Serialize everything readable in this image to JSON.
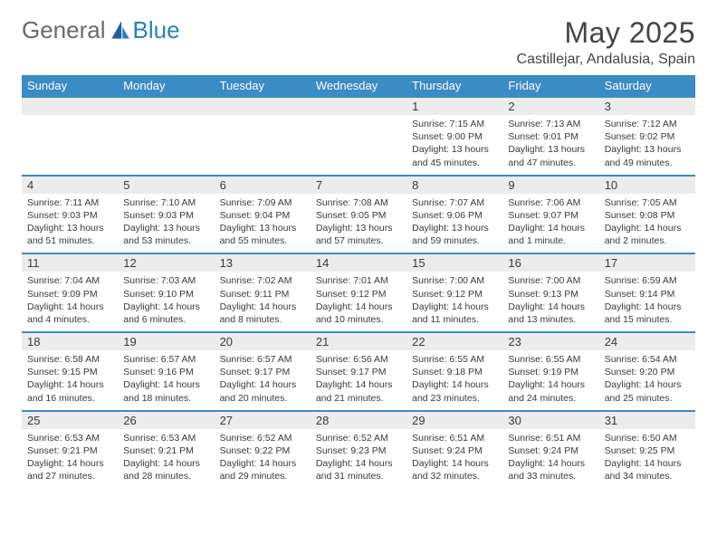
{
  "brand": {
    "general": "General",
    "blue": "Blue"
  },
  "title": "May 2025",
  "location": "Castillejar, Andalusia, Spain",
  "day_headers": [
    "Sunday",
    "Monday",
    "Tuesday",
    "Wednesday",
    "Thursday",
    "Friday",
    "Saturday"
  ],
  "colors": {
    "header_bg": "#3b8bc4",
    "header_text": "#ffffff",
    "daynum_bg": "#ececec",
    "row_divider": "#3b8bc4",
    "text": "#3a3a3a",
    "page_bg": "#ffffff"
  },
  "weeks": [
    {
      "nums": [
        "",
        "",
        "",
        "",
        "1",
        "2",
        "3"
      ],
      "cells": [
        null,
        null,
        null,
        null,
        {
          "sr": "Sunrise: 7:15 AM",
          "ss": "Sunset: 9:00 PM",
          "dl": "Daylight: 13 hours and 45 minutes."
        },
        {
          "sr": "Sunrise: 7:13 AM",
          "ss": "Sunset: 9:01 PM",
          "dl": "Daylight: 13 hours and 47 minutes."
        },
        {
          "sr": "Sunrise: 7:12 AM",
          "ss": "Sunset: 9:02 PM",
          "dl": "Daylight: 13 hours and 49 minutes."
        }
      ]
    },
    {
      "nums": [
        "4",
        "5",
        "6",
        "7",
        "8",
        "9",
        "10"
      ],
      "cells": [
        {
          "sr": "Sunrise: 7:11 AM",
          "ss": "Sunset: 9:03 PM",
          "dl": "Daylight: 13 hours and 51 minutes."
        },
        {
          "sr": "Sunrise: 7:10 AM",
          "ss": "Sunset: 9:03 PM",
          "dl": "Daylight: 13 hours and 53 minutes."
        },
        {
          "sr": "Sunrise: 7:09 AM",
          "ss": "Sunset: 9:04 PM",
          "dl": "Daylight: 13 hours and 55 minutes."
        },
        {
          "sr": "Sunrise: 7:08 AM",
          "ss": "Sunset: 9:05 PM",
          "dl": "Daylight: 13 hours and 57 minutes."
        },
        {
          "sr": "Sunrise: 7:07 AM",
          "ss": "Sunset: 9:06 PM",
          "dl": "Daylight: 13 hours and 59 minutes."
        },
        {
          "sr": "Sunrise: 7:06 AM",
          "ss": "Sunset: 9:07 PM",
          "dl": "Daylight: 14 hours and 1 minute."
        },
        {
          "sr": "Sunrise: 7:05 AM",
          "ss": "Sunset: 9:08 PM",
          "dl": "Daylight: 14 hours and 2 minutes."
        }
      ]
    },
    {
      "nums": [
        "11",
        "12",
        "13",
        "14",
        "15",
        "16",
        "17"
      ],
      "cells": [
        {
          "sr": "Sunrise: 7:04 AM",
          "ss": "Sunset: 9:09 PM",
          "dl": "Daylight: 14 hours and 4 minutes."
        },
        {
          "sr": "Sunrise: 7:03 AM",
          "ss": "Sunset: 9:10 PM",
          "dl": "Daylight: 14 hours and 6 minutes."
        },
        {
          "sr": "Sunrise: 7:02 AM",
          "ss": "Sunset: 9:11 PM",
          "dl": "Daylight: 14 hours and 8 minutes."
        },
        {
          "sr": "Sunrise: 7:01 AM",
          "ss": "Sunset: 9:12 PM",
          "dl": "Daylight: 14 hours and 10 minutes."
        },
        {
          "sr": "Sunrise: 7:00 AM",
          "ss": "Sunset: 9:12 PM",
          "dl": "Daylight: 14 hours and 11 minutes."
        },
        {
          "sr": "Sunrise: 7:00 AM",
          "ss": "Sunset: 9:13 PM",
          "dl": "Daylight: 14 hours and 13 minutes."
        },
        {
          "sr": "Sunrise: 6:59 AM",
          "ss": "Sunset: 9:14 PM",
          "dl": "Daylight: 14 hours and 15 minutes."
        }
      ]
    },
    {
      "nums": [
        "18",
        "19",
        "20",
        "21",
        "22",
        "23",
        "24"
      ],
      "cells": [
        {
          "sr": "Sunrise: 6:58 AM",
          "ss": "Sunset: 9:15 PM",
          "dl": "Daylight: 14 hours and 16 minutes."
        },
        {
          "sr": "Sunrise: 6:57 AM",
          "ss": "Sunset: 9:16 PM",
          "dl": "Daylight: 14 hours and 18 minutes."
        },
        {
          "sr": "Sunrise: 6:57 AM",
          "ss": "Sunset: 9:17 PM",
          "dl": "Daylight: 14 hours and 20 minutes."
        },
        {
          "sr": "Sunrise: 6:56 AM",
          "ss": "Sunset: 9:17 PM",
          "dl": "Daylight: 14 hours and 21 minutes."
        },
        {
          "sr": "Sunrise: 6:55 AM",
          "ss": "Sunset: 9:18 PM",
          "dl": "Daylight: 14 hours and 23 minutes."
        },
        {
          "sr": "Sunrise: 6:55 AM",
          "ss": "Sunset: 9:19 PM",
          "dl": "Daylight: 14 hours and 24 minutes."
        },
        {
          "sr": "Sunrise: 6:54 AM",
          "ss": "Sunset: 9:20 PM",
          "dl": "Daylight: 14 hours and 25 minutes."
        }
      ]
    },
    {
      "nums": [
        "25",
        "26",
        "27",
        "28",
        "29",
        "30",
        "31"
      ],
      "cells": [
        {
          "sr": "Sunrise: 6:53 AM",
          "ss": "Sunset: 9:21 PM",
          "dl": "Daylight: 14 hours and 27 minutes."
        },
        {
          "sr": "Sunrise: 6:53 AM",
          "ss": "Sunset: 9:21 PM",
          "dl": "Daylight: 14 hours and 28 minutes."
        },
        {
          "sr": "Sunrise: 6:52 AM",
          "ss": "Sunset: 9:22 PM",
          "dl": "Daylight: 14 hours and 29 minutes."
        },
        {
          "sr": "Sunrise: 6:52 AM",
          "ss": "Sunset: 9:23 PM",
          "dl": "Daylight: 14 hours and 31 minutes."
        },
        {
          "sr": "Sunrise: 6:51 AM",
          "ss": "Sunset: 9:24 PM",
          "dl": "Daylight: 14 hours and 32 minutes."
        },
        {
          "sr": "Sunrise: 6:51 AM",
          "ss": "Sunset: 9:24 PM",
          "dl": "Daylight: 14 hours and 33 minutes."
        },
        {
          "sr": "Sunrise: 6:50 AM",
          "ss": "Sunset: 9:25 PM",
          "dl": "Daylight: 14 hours and 34 minutes."
        }
      ]
    }
  ]
}
